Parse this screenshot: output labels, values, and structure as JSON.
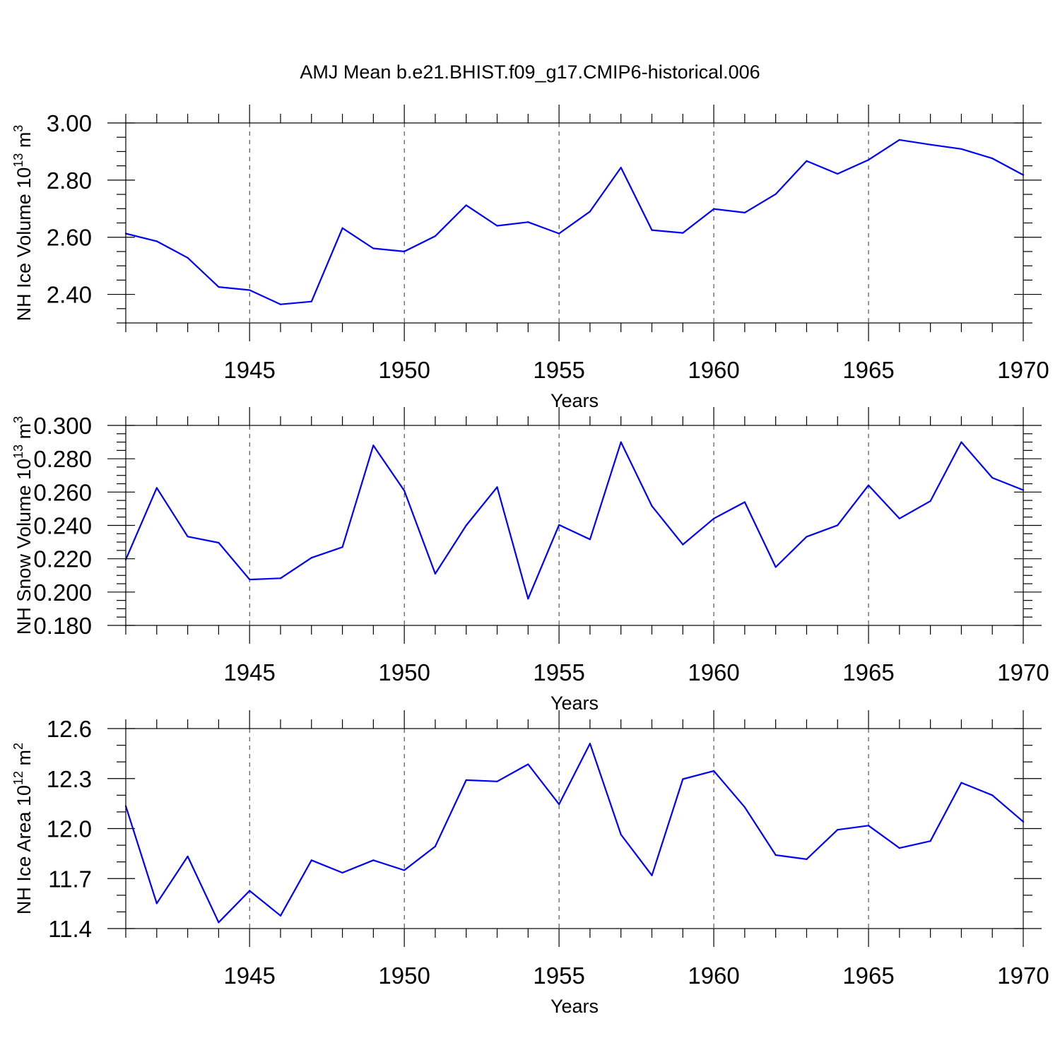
{
  "title": "AMJ Mean b.e21.BHIST.f09_g17.CMIP6-historical.006",
  "colors": {
    "line": "#0000ff",
    "axis": "#000000"
  },
  "chart_data": [
    {
      "type": "line",
      "id": "ice-volume",
      "ylabel_main": "NH Ice Volume 10",
      "ylabel_exp": "13",
      "ylabel_unit": " m",
      "ylabel_unit_exp": "3",
      "xlabel": "Years",
      "xlim": [
        1941,
        1970
      ],
      "ylim": [
        2.3,
        3.0
      ],
      "yticks": [
        2.4,
        2.6,
        2.8,
        3.0
      ],
      "ytick_labels": [
        "2.40",
        "2.60",
        "2.80",
        "3.00"
      ],
      "y_minor_step": 0.05,
      "xticks": [
        1945,
        1950,
        1955,
        1960,
        1965,
        1970
      ],
      "xtick_labels": [
        "1945",
        "1950",
        "1955",
        "1960",
        "1965",
        "1970"
      ],
      "grid": "vertical dashed at major x ticks",
      "series": [
        {
          "name": "NH Ice Volume",
          "x": [
            1941,
            1942,
            1943,
            1944,
            1945,
            1946,
            1947,
            1948,
            1949,
            1950,
            1951,
            1952,
            1953,
            1954,
            1955,
            1956,
            1957,
            1958,
            1959,
            1960,
            1961,
            1962,
            1963,
            1964,
            1965,
            1966,
            1967,
            1968,
            1969,
            1970
          ],
          "values": [
            2.613,
            2.586,
            2.528,
            2.426,
            2.415,
            2.365,
            2.375,
            2.632,
            2.561,
            2.55,
            2.604,
            2.712,
            2.64,
            2.653,
            2.613,
            2.69,
            2.844,
            2.625,
            2.615,
            2.699,
            2.686,
            2.751,
            2.867,
            2.822,
            2.871,
            2.941,
            2.924,
            2.909,
            2.876,
            2.818
          ]
        }
      ]
    },
    {
      "type": "line",
      "id": "snow-volume",
      "ylabel_main": "NH Snow Volume 10",
      "ylabel_exp": "13",
      "ylabel_unit": " m",
      "ylabel_unit_exp": "3",
      "xlabel": "Years",
      "xlim": [
        1941,
        1970
      ],
      "ylim": [
        0.18,
        0.3
      ],
      "yticks": [
        0.18,
        0.2,
        0.22,
        0.24,
        0.26,
        0.28,
        0.3
      ],
      "ytick_labels": [
        "0.180",
        "0.200",
        "0.220",
        "0.240",
        "0.260",
        "0.280",
        "0.300"
      ],
      "y_minor_step": 0.005,
      "xticks": [
        1945,
        1950,
        1955,
        1960,
        1965,
        1970
      ],
      "xtick_labels": [
        "1945",
        "1950",
        "1955",
        "1960",
        "1965",
        "1970"
      ],
      "grid": "vertical dashed at major x ticks",
      "series": [
        {
          "name": "NH Snow Volume",
          "x": [
            1941,
            1942,
            1943,
            1944,
            1945,
            1946,
            1947,
            1948,
            1949,
            1950,
            1951,
            1952,
            1953,
            1954,
            1955,
            1956,
            1957,
            1958,
            1959,
            1960,
            1961,
            1962,
            1963,
            1964,
            1965,
            1966,
            1967,
            1968,
            1969,
            1970
          ],
          "values": [
            0.2195,
            0.2625,
            0.2333,
            0.2296,
            0.2075,
            0.2083,
            0.2206,
            0.227,
            0.288,
            0.2608,
            0.211,
            0.24,
            0.263,
            0.196,
            0.2403,
            0.2316,
            0.29,
            0.2516,
            0.2285,
            0.2441,
            0.254,
            0.215,
            0.2332,
            0.2401,
            0.2641,
            0.2441,
            0.2546,
            0.29,
            0.2686,
            0.2612
          ]
        }
      ]
    },
    {
      "type": "line",
      "id": "ice-area",
      "ylabel_main": "NH Ice Area 10",
      "ylabel_exp": "12",
      "ylabel_unit": " m",
      "ylabel_unit_exp": "2",
      "xlabel": "Years",
      "xlim": [
        1941,
        1970
      ],
      "ylim": [
        11.4,
        12.6
      ],
      "yticks": [
        11.4,
        11.7,
        12.0,
        12.3,
        12.6
      ],
      "ytick_labels": [
        "11.4",
        "11.7",
        "12.0",
        "12.3",
        "12.6"
      ],
      "y_minor_step": 0.1,
      "xticks": [
        1945,
        1950,
        1955,
        1960,
        1965,
        1970
      ],
      "xtick_labels": [
        "1945",
        "1950",
        "1955",
        "1960",
        "1965",
        "1970"
      ],
      "grid": "vertical dashed at major x ticks",
      "series": [
        {
          "name": "NH Ice Area",
          "x": [
            1941,
            1942,
            1943,
            1944,
            1945,
            1946,
            1947,
            1948,
            1949,
            1950,
            1951,
            1952,
            1953,
            1954,
            1955,
            1956,
            1957,
            1958,
            1959,
            1960,
            1961,
            1962,
            1963,
            1964,
            1965,
            1966,
            1967,
            1968,
            1969,
            1970
          ],
          "values": [
            12.135,
            11.551,
            11.833,
            11.437,
            11.627,
            11.477,
            11.81,
            11.735,
            11.81,
            11.75,
            11.893,
            12.291,
            12.283,
            12.386,
            12.146,
            12.51,
            11.964,
            11.719,
            12.297,
            12.346,
            12.128,
            11.841,
            11.816,
            11.993,
            12.018,
            11.883,
            11.925,
            12.275,
            12.2,
            12.041
          ]
        }
      ]
    }
  ]
}
